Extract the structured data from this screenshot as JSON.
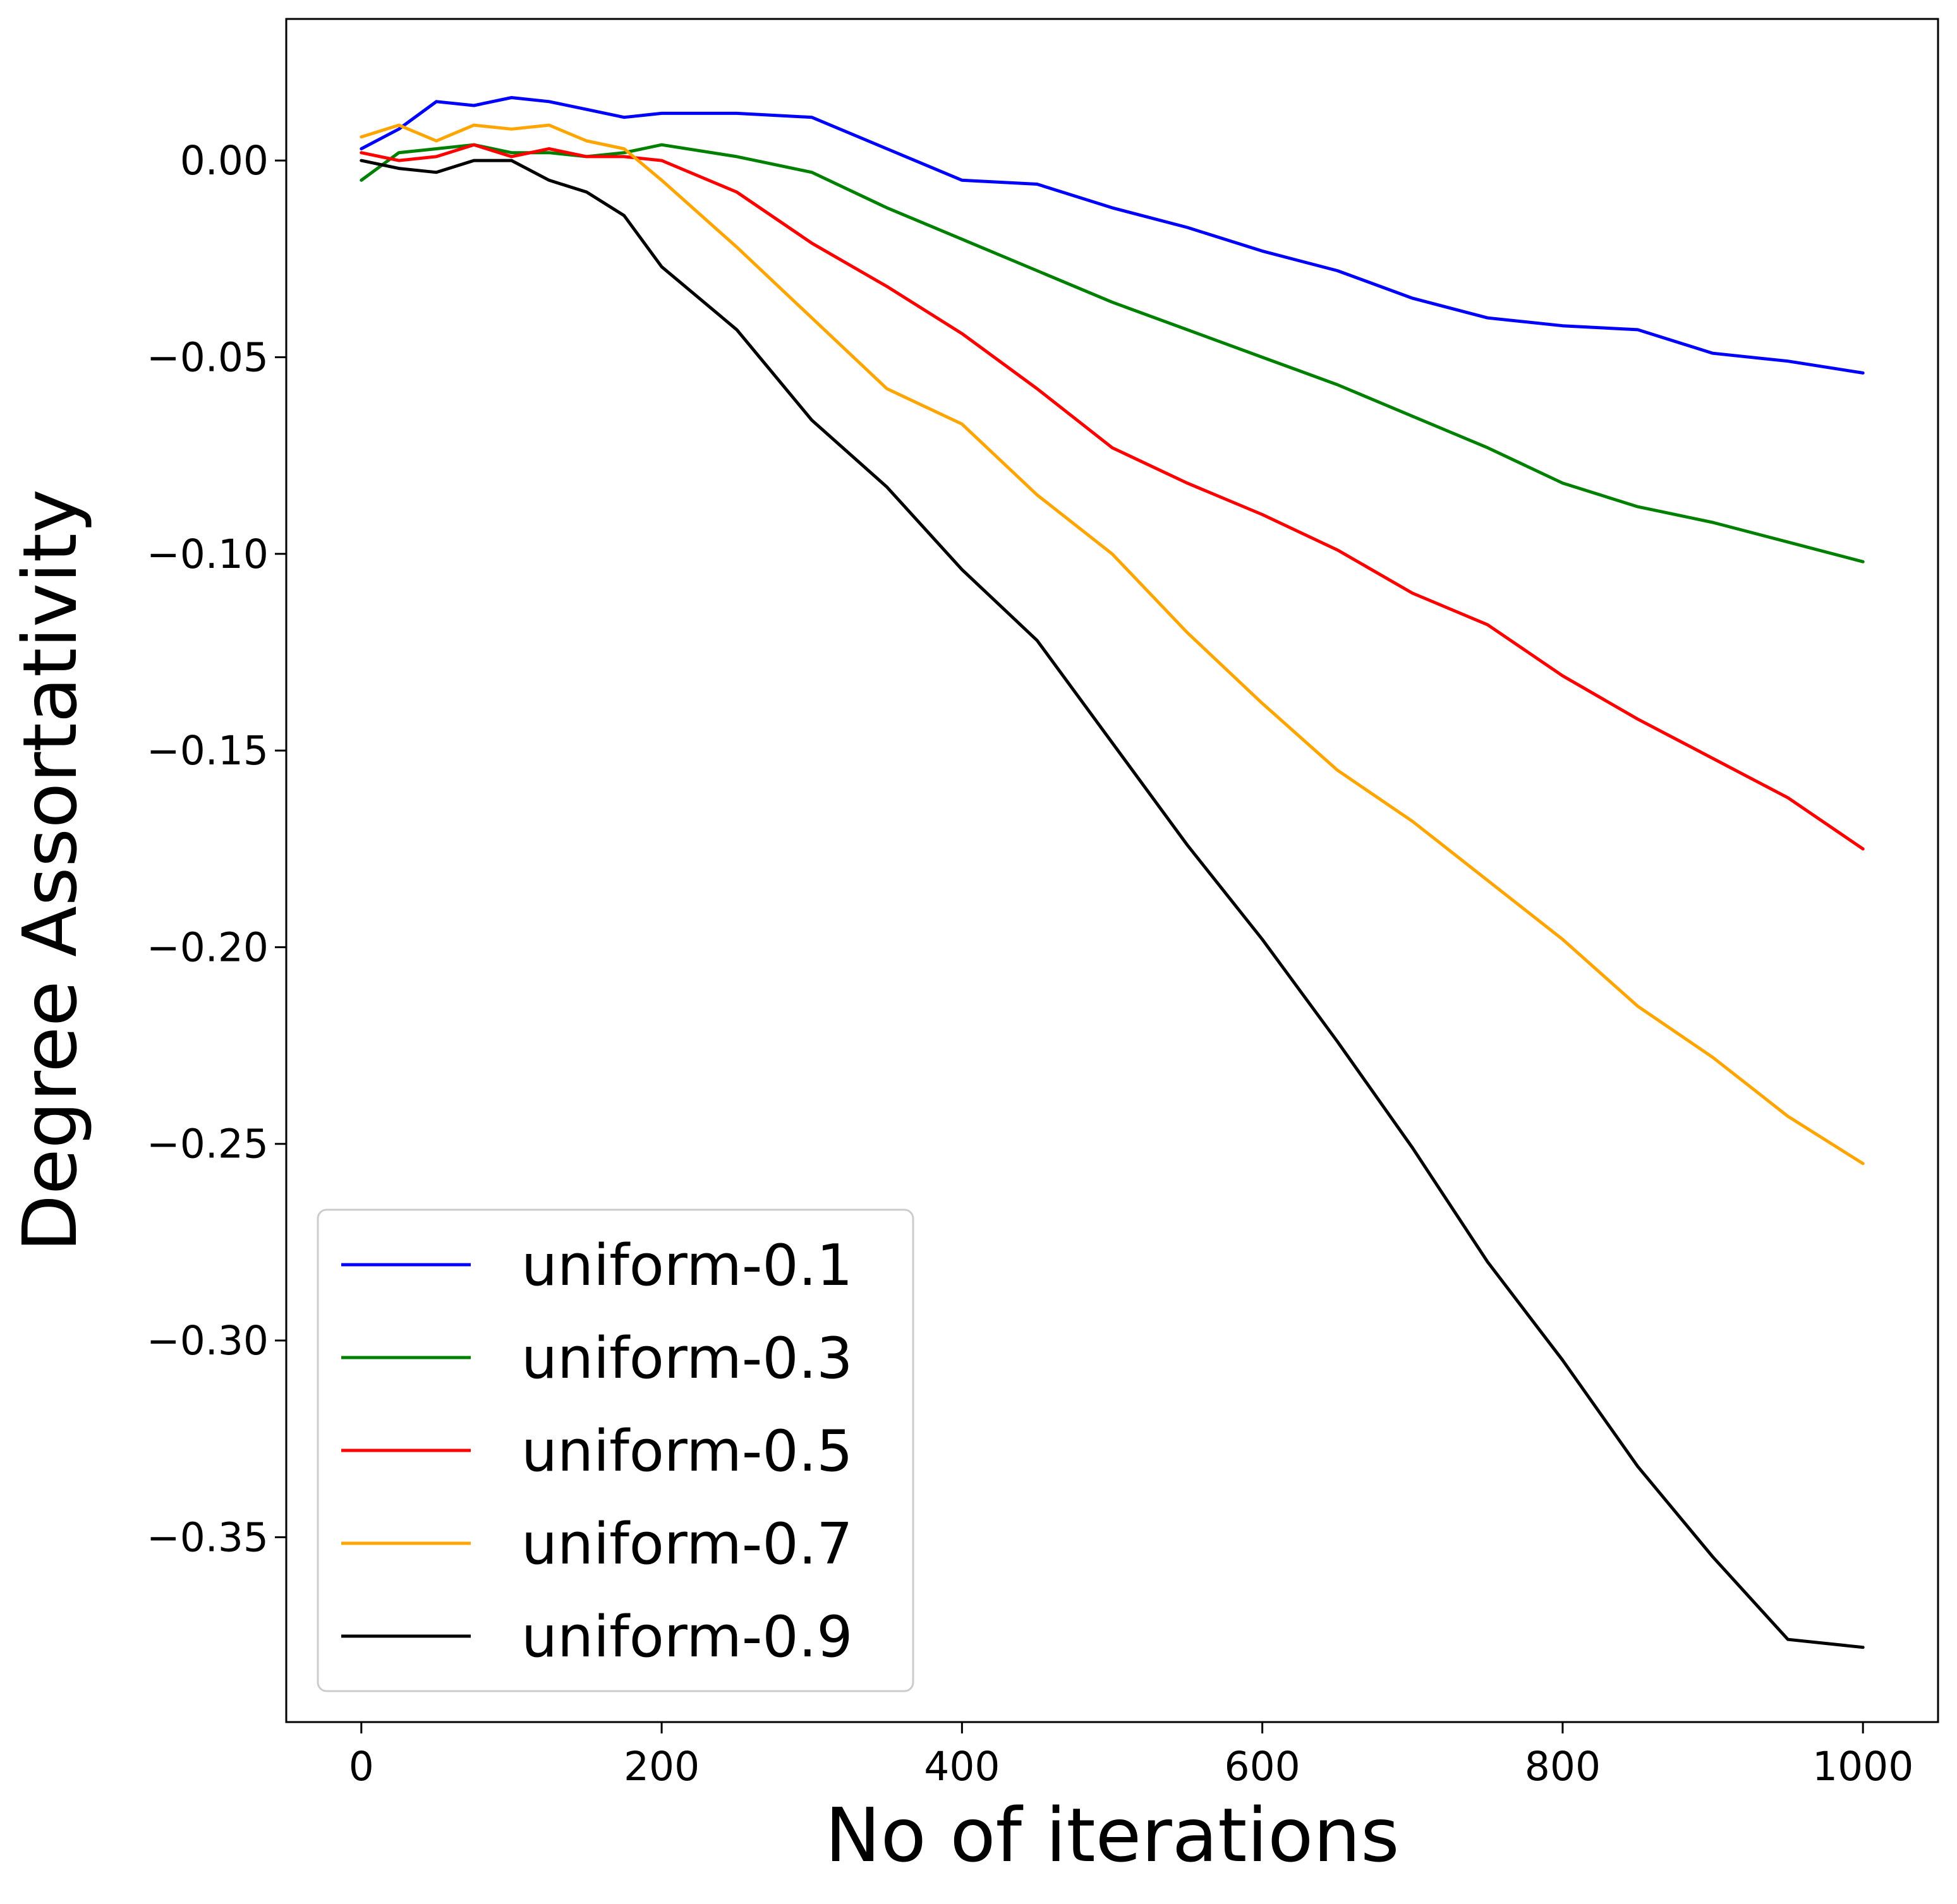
{
  "chart_data": {
    "type": "line",
    "title": "",
    "xlabel": "No of iterations",
    "ylabel": "Degree Assortativity",
    "xlim": [
      -50,
      1050
    ],
    "ylim": [
      -0.397,
      0.036
    ],
    "xticks": [
      0,
      200,
      400,
      600,
      800,
      1000
    ],
    "xtick_labels": [
      "0",
      "200",
      "400",
      "600",
      "800",
      "1000"
    ],
    "yticks": [
      0.0,
      -0.05,
      -0.1,
      -0.15,
      -0.2,
      -0.25,
      -0.3,
      -0.35
    ],
    "ytick_labels": [
      "0.00",
      "−0.05",
      "−0.10",
      "−0.15",
      "−0.20",
      "−0.25",
      "−0.30",
      "−0.35"
    ],
    "grid": false,
    "legend_position": "lower-left",
    "x": [
      0,
      25,
      50,
      75,
      100,
      125,
      150,
      175,
      200,
      250,
      300,
      350,
      400,
      450,
      500,
      550,
      600,
      650,
      700,
      750,
      800,
      850,
      900,
      950,
      1000
    ],
    "series": [
      {
        "name": "uniform-0.1",
        "color": "#0000ff",
        "values": [
          0.003,
          0.008,
          0.015,
          0.014,
          0.016,
          0.015,
          0.013,
          0.011,
          0.012,
          0.012,
          0.011,
          0.003,
          -0.005,
          -0.006,
          -0.012,
          -0.017,
          -0.023,
          -0.028,
          -0.035,
          -0.04,
          -0.042,
          -0.043,
          -0.049,
          -0.051,
          -0.054
        ]
      },
      {
        "name": "uniform-0.3",
        "color": "#008000",
        "values": [
          -0.005,
          0.002,
          0.003,
          0.004,
          0.002,
          0.002,
          0.001,
          0.002,
          0.004,
          0.001,
          -0.003,
          -0.012,
          -0.02,
          -0.028,
          -0.036,
          -0.043,
          -0.05,
          -0.057,
          -0.065,
          -0.073,
          -0.082,
          -0.088,
          -0.092,
          -0.097,
          -0.102
        ]
      },
      {
        "name": "uniform-0.5",
        "color": "#ff0000",
        "values": [
          0.002,
          0.0,
          0.001,
          0.004,
          0.001,
          0.003,
          0.001,
          0.001,
          0.0,
          -0.008,
          -0.021,
          -0.032,
          -0.044,
          -0.058,
          -0.073,
          -0.082,
          -0.09,
          -0.099,
          -0.11,
          -0.118,
          -0.131,
          -0.142,
          -0.152,
          -0.162,
          -0.175
        ]
      },
      {
        "name": "uniform-0.7",
        "color": "#ffa500",
        "values": [
          0.006,
          0.009,
          0.005,
          0.009,
          0.008,
          0.009,
          0.005,
          0.003,
          -0.005,
          -0.022,
          -0.04,
          -0.058,
          -0.067,
          -0.085,
          -0.1,
          -0.12,
          -0.138,
          -0.155,
          -0.168,
          -0.183,
          -0.198,
          -0.215,
          -0.228,
          -0.243,
          -0.255
        ]
      },
      {
        "name": "uniform-0.9",
        "color": "#000000",
        "values": [
          0.0,
          -0.002,
          -0.003,
          0.0,
          0.0,
          -0.005,
          -0.008,
          -0.014,
          -0.027,
          -0.043,
          -0.066,
          -0.083,
          -0.104,
          -0.122,
          -0.148,
          -0.174,
          -0.198,
          -0.224,
          -0.251,
          -0.28,
          -0.305,
          -0.332,
          -0.355,
          -0.376,
          -0.378
        ]
      }
    ]
  }
}
